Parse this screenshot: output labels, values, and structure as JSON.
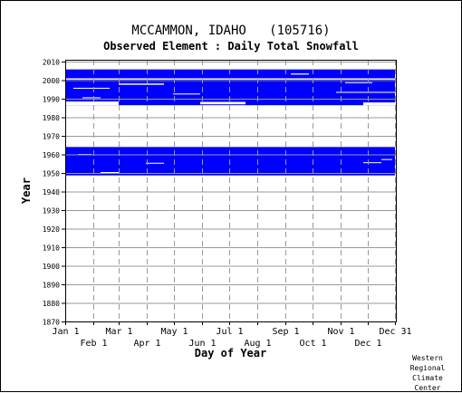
{
  "header": {
    "station": "MCCAMMON, IDAHO",
    "station_id": "(105716)",
    "element": "Observed Element : Daily Total Snowfall"
  },
  "credit": [
    "Western",
    "Regional",
    "Climate",
    "Center"
  ],
  "colors": {
    "data": "#0000ff",
    "grid": "#999999",
    "axis": "#000000"
  },
  "chart_data": {
    "type": "heatmap",
    "description_of_marks": "blue fill = days with snowfall data present",
    "xlabel": "Day of Year",
    "ylabel": "Year",
    "xlim": [
      1,
      366
    ],
    "ylim": [
      1870,
      2011
    ],
    "x_ticks_top": [
      {
        "label": "Jan 1",
        "day": 1
      },
      {
        "label": "Mar 1",
        "day": 60
      },
      {
        "label": "May 1",
        "day": 121
      },
      {
        "label": "Jul 1",
        "day": 182
      },
      {
        "label": "Sep 1",
        "day": 244
      },
      {
        "label": "Nov 1",
        "day": 305
      },
      {
        "label": "Dec 31",
        "day": 365
      }
    ],
    "x_ticks_bottom": [
      {
        "label": "Feb 1",
        "day": 32
      },
      {
        "label": "Apr 1",
        "day": 91
      },
      {
        "label": "Jun 1",
        "day": 152
      },
      {
        "label": "Aug 1",
        "day": 213
      },
      {
        "label": "Oct 1",
        "day": 274
      },
      {
        "label": "Dec 1",
        "day": 335
      }
    ],
    "y_ticks": [
      2010,
      2000,
      1990,
      1980,
      1970,
      1960,
      1950,
      1940,
      1930,
      1920,
      1910,
      1900,
      1890,
      1880,
      1870
    ],
    "grid": true,
    "coverage_blocks": [
      {
        "day_start": 1,
        "day_end": 365,
        "year_start": 1948.7,
        "year_end": 1964.0
      },
      {
        "day_start": 1,
        "day_end": 365,
        "year_start": 1986.5,
        "year_end": 2005.8
      }
    ],
    "gaps": [
      {
        "day_start": 1,
        "day_end": 60,
        "year_start": 1986.5,
        "year_end": 1988.5
      },
      {
        "day_start": 150,
        "day_end": 200,
        "year_start": 1987.0,
        "year_end": 1988.3
      },
      {
        "day_start": 330,
        "day_end": 365,
        "year_start": 1986.5,
        "year_end": 1988.0
      },
      {
        "day_start": 1,
        "day_end": 365,
        "year_start": 2000.3,
        "year_end": 2001.0
      },
      {
        "day_start": 60,
        "day_end": 110,
        "year_start": 1997.5,
        "year_end": 1998.2
      },
      {
        "day_start": 10,
        "day_end": 50,
        "year_start": 1995.4,
        "year_end": 1995.9
      },
      {
        "day_start": 120,
        "day_end": 150,
        "year_start": 1992.3,
        "year_end": 1992.8
      },
      {
        "day_start": 310,
        "day_end": 340,
        "year_start": 1998.4,
        "year_end": 1998.9
      },
      {
        "day_start": 300,
        "day_end": 365,
        "year_start": 1993.2,
        "year_end": 1993.7
      },
      {
        "day_start": 20,
        "day_end": 40,
        "year_start": 1990.3,
        "year_end": 1990.8
      },
      {
        "day_start": 250,
        "day_end": 270,
        "year_start": 2003.0,
        "year_end": 2003.6
      },
      {
        "day_start": 40,
        "day_end": 60,
        "year_start": 1950.0,
        "year_end": 1950.5
      },
      {
        "day_start": 90,
        "day_end": 110,
        "year_start": 1955.0,
        "year_end": 1955.5
      },
      {
        "day_start": 330,
        "day_end": 350,
        "year_start": 1955.3,
        "year_end": 1955.8
      },
      {
        "day_start": 350,
        "day_end": 362,
        "year_start": 1957.0,
        "year_end": 1957.5
      },
      {
        "day_start": 15,
        "day_end": 30,
        "year_start": 1959.7,
        "year_end": 1960.2
      }
    ]
  }
}
